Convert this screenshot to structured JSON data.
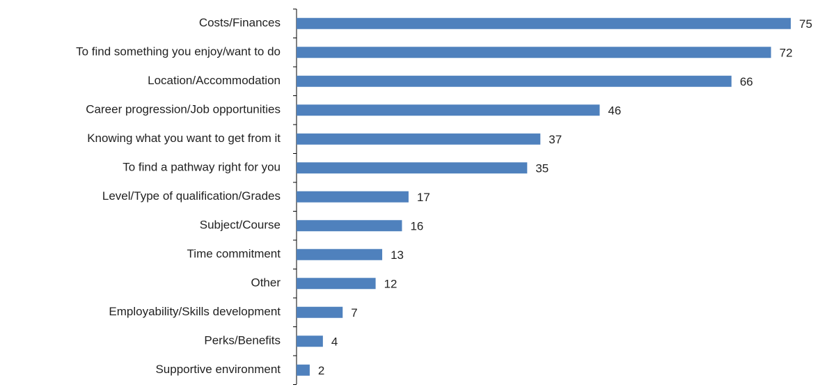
{
  "chart_data": {
    "type": "bar",
    "orientation": "horizontal",
    "categories": [
      "Costs/Finances",
      "To find something you enjoy/want to do",
      "Location/Accommodation",
      "Career progression/Job opportunities",
      "Knowing what you want to get from it",
      "To find a pathway right for you",
      "Level/Type of qualification/Grades",
      "Subject/Course",
      "Time commitment",
      "Other",
      "Employability/Skills development",
      "Perks/Benefits",
      "Supportive environment"
    ],
    "values": [
      75,
      72,
      66,
      46,
      37,
      35,
      17,
      16,
      13,
      12,
      7,
      4,
      2
    ],
    "color": "#4f81bd"
  }
}
